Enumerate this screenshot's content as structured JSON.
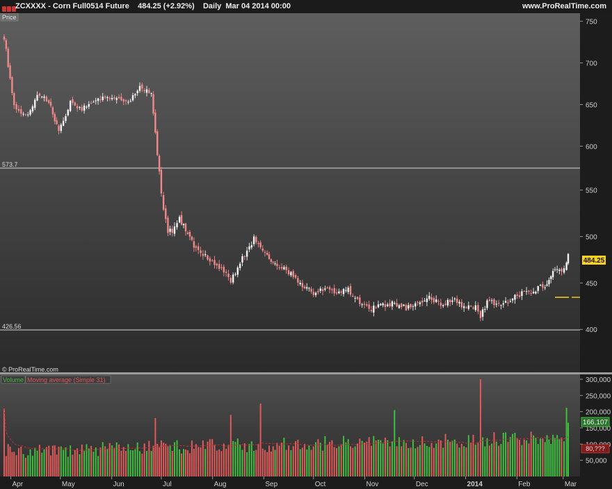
{
  "header": {
    "symbol": "ZCXXXX",
    "sep": "-",
    "name": "Corn Full0514 Future",
    "last": "484.25 (+2.92%)",
    "period": "Daily",
    "date": "Mar 04 2014 00:00",
    "site": "www.ProRealTime.com"
  },
  "price_panel": {
    "tag": "Price",
    "level_high_label": "573.7",
    "level_low_label": "426.56",
    "current_price": "484.25",
    "copyright": "© ProRealTime.com"
  },
  "volume_panel": {
    "legend_volume": "Volume",
    "legend_ma": "Moving average (Simple 31)",
    "volume_value": "166,107",
    "ma_value": "80,???"
  },
  "colors": {
    "up": "#3fbf3f",
    "down": "#e05a5a",
    "candle_up": "#f2f2f2",
    "candle_down": "#f08a8a",
    "ma_line": "#c03030",
    "current_box": "#ffd21f"
  },
  "chart_data": [
    {
      "type": "candlestick",
      "title": "ZCXXXX - Corn Full0514 Future",
      "interval": "Daily",
      "x_ticks": [
        "Apr",
        "May",
        "Jun",
        "Jul",
        "Aug",
        "Sep",
        "Oct",
        "Nov",
        "Dec",
        "2014",
        "Feb",
        "Mar"
      ],
      "y_ticks": [
        750,
        700,
        650,
        600,
        550,
        500,
        450,
        400
      ],
      "axis_scale": "broken",
      "upper_segment_range": [
        573.7,
        750
      ],
      "lower_segment_range": [
        400,
        573.7
      ],
      "horizontal_lines": [
        573.7,
        426.56
      ],
      "last_price": 484.25,
      "close_series": [
        {
          "date": "2013-03-28",
          "close": 731
        },
        {
          "date": "2013-04-03",
          "close": 648
        },
        {
          "date": "2013-04-10",
          "close": 636
        },
        {
          "date": "2013-04-17",
          "close": 660
        },
        {
          "date": "2013-04-24",
          "close": 655
        },
        {
          "date": "2013-04-30",
          "close": 616
        },
        {
          "date": "2013-05-07",
          "close": 652
        },
        {
          "date": "2013-05-14",
          "close": 645
        },
        {
          "date": "2013-05-21",
          "close": 653
        },
        {
          "date": "2013-05-28",
          "close": 660
        },
        {
          "date": "2013-06-04",
          "close": 658
        },
        {
          "date": "2013-06-11",
          "close": 652
        },
        {
          "date": "2013-06-18",
          "close": 670
        },
        {
          "date": "2013-06-25",
          "close": 663
        },
        {
          "date": "2013-07-01",
          "close": 545
        },
        {
          "date": "2013-07-05",
          "close": 505
        },
        {
          "date": "2013-07-09",
          "close": 508
        },
        {
          "date": "2013-07-12",
          "close": 520
        },
        {
          "date": "2013-07-17",
          "close": 502
        },
        {
          "date": "2013-07-22",
          "close": 485
        },
        {
          "date": "2013-07-29",
          "close": 478
        },
        {
          "date": "2013-08-05",
          "close": 468
        },
        {
          "date": "2013-08-12",
          "close": 452
        },
        {
          "date": "2013-08-19",
          "close": 476
        },
        {
          "date": "2013-08-26",
          "close": 498
        },
        {
          "date": "2013-09-03",
          "close": 480
        },
        {
          "date": "2013-09-09",
          "close": 468
        },
        {
          "date": "2013-09-16",
          "close": 462
        },
        {
          "date": "2013-09-23",
          "close": 450
        },
        {
          "date": "2013-10-01",
          "close": 440
        },
        {
          "date": "2013-10-08",
          "close": 444
        },
        {
          "date": "2013-10-15",
          "close": 440
        },
        {
          "date": "2013-10-22",
          "close": 442
        },
        {
          "date": "2013-10-29",
          "close": 430
        },
        {
          "date": "2013-11-05",
          "close": 422
        },
        {
          "date": "2013-11-12",
          "close": 426
        },
        {
          "date": "2013-11-19",
          "close": 428
        },
        {
          "date": "2013-11-26",
          "close": 423
        },
        {
          "date": "2013-12-03",
          "close": 429
        },
        {
          "date": "2013-12-10",
          "close": 436
        },
        {
          "date": "2013-12-17",
          "close": 426
        },
        {
          "date": "2013-12-24",
          "close": 432
        },
        {
          "date": "2013-12-31",
          "close": 424
        },
        {
          "date": "2014-01-07",
          "close": 424
        },
        {
          "date": "2014-01-10",
          "close": 414
        },
        {
          "date": "2014-01-14",
          "close": 430
        },
        {
          "date": "2014-01-21",
          "close": 426
        },
        {
          "date": "2014-01-28",
          "close": 432
        },
        {
          "date": "2014-02-04",
          "close": 439
        },
        {
          "date": "2014-02-11",
          "close": 442
        },
        {
          "date": "2014-02-18",
          "close": 448
        },
        {
          "date": "2014-02-24",
          "close": 463
        },
        {
          "date": "2014-02-28",
          "close": 461
        },
        {
          "date": "2014-03-03",
          "close": 471
        },
        {
          "date": "2014-03-04",
          "close": 484.25
        }
      ]
    },
    {
      "type": "bar",
      "title": "Volume",
      "x_ticks": [
        "Apr",
        "May",
        "Jun",
        "Jul",
        "Aug",
        "Sep",
        "Oct",
        "Nov",
        "Dec",
        "2014",
        "Feb",
        "Mar"
      ],
      "y_ticks": [
        300000,
        250000,
        200000,
        150000,
        100000,
        50000
      ],
      "last_volume": 166107,
      "moving_average": {
        "name": "Moving average (Simple 31)",
        "approx_level": 90000
      },
      "volume_spikes": [
        {
          "date": "2013-03-28",
          "volume": 210000
        },
        {
          "date": "2013-06-28",
          "volume": 180000
        },
        {
          "date": "2013-08-12",
          "volume": 190000
        },
        {
          "date": "2013-08-30",
          "volume": 225000
        },
        {
          "date": "2013-11-19",
          "volume": 205000
        },
        {
          "date": "2014-01-10",
          "volume": 300000
        },
        {
          "date": "2014-03-03",
          "volume": 212000
        },
        {
          "date": "2014-03-04",
          "volume": 166107
        }
      ]
    }
  ]
}
